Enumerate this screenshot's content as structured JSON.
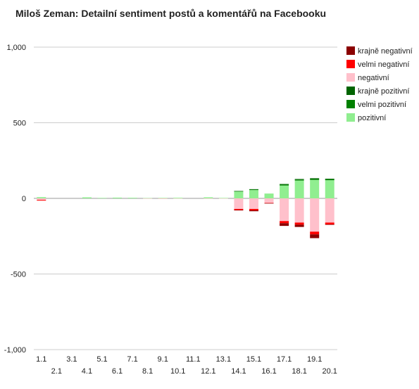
{
  "chart_data": {
    "type": "bar",
    "stacked": true,
    "title": "Miloš Zeman: Detailní sentiment postů a komentářů na Facebooku",
    "xlabel": "",
    "ylabel": "",
    "ylim": [
      -1000,
      1000
    ],
    "yticks": [
      1000,
      500,
      0,
      -500,
      -1000
    ],
    "ytick_labels": [
      "1,000",
      "500",
      "0",
      "-500",
      "-1,000"
    ],
    "grid": true,
    "legend_position": "right",
    "categories": [
      "1.1",
      "2.1",
      "3.1",
      "4.1",
      "5.1",
      "6.1",
      "7.1",
      "8.1",
      "9.1",
      "10.1",
      "11.1",
      "12.1",
      "13.1",
      "14.1",
      "15.1",
      "16.1",
      "17.1",
      "18.1",
      "19.1",
      "20.1"
    ],
    "series": [
      {
        "name": "krajně negativní",
        "color": "#8b0000",
        "values": [
          0,
          0,
          0,
          0,
          0,
          0,
          0,
          0,
          0,
          0,
          0,
          0,
          0,
          -3,
          -6,
          -2,
          -18,
          -15,
          -25,
          -3
        ]
      },
      {
        "name": "velmi negativní",
        "color": "#ff0000",
        "values": [
          -5,
          0,
          0,
          0,
          0,
          0,
          0,
          0,
          0,
          0,
          0,
          0,
          0,
          -7,
          -9,
          -2,
          -14,
          -14,
          -18,
          -12
        ]
      },
      {
        "name": "negativní",
        "color": "#ffc0cb",
        "values": [
          -10,
          0,
          0,
          0,
          0,
          0,
          0,
          -3,
          -4,
          -2,
          0,
          -3,
          -2,
          -70,
          -70,
          -30,
          -150,
          -160,
          -220,
          -160
        ]
      },
      {
        "name": "krajně pozitivní",
        "color": "#006400",
        "values": [
          0,
          0,
          0,
          0,
          0,
          0,
          0,
          0,
          0,
          0,
          0,
          0,
          0,
          1,
          2,
          0,
          4,
          4,
          5,
          4
        ]
      },
      {
        "name": "velmi pozitivní",
        "color": "#008000",
        "values": [
          0,
          0,
          0,
          0,
          0,
          0,
          0,
          0,
          0,
          0,
          0,
          0,
          0,
          3,
          4,
          0,
          6,
          6,
          6,
          6
        ]
      },
      {
        "name": "pozitivní",
        "color": "#90ee90",
        "values": [
          8,
          0,
          0,
          7,
          3,
          5,
          4,
          2,
          3,
          4,
          0,
          7,
          3,
          45,
          55,
          32,
          85,
          118,
          122,
          120
        ]
      }
    ]
  }
}
